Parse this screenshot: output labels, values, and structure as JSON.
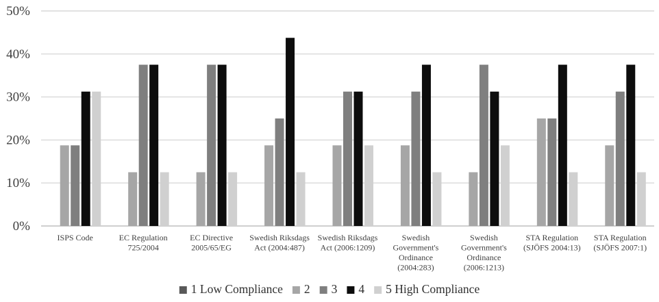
{
  "chart_data": {
    "type": "bar",
    "title": "",
    "xlabel": "",
    "ylabel": "",
    "ylim": [
      0,
      50
    ],
    "yticks": [
      "0%",
      "10%",
      "20%",
      "30%",
      "40%",
      "50%"
    ],
    "grid": true,
    "legend_position": "bottom",
    "categories": [
      [
        "ISPS Code"
      ],
      [
        "EC Regulation",
        "725/2004"
      ],
      [
        "EC Directive",
        "2005/65/EG"
      ],
      [
        "Swedish Riksdags",
        "Act (2004:487)"
      ],
      [
        "Swedish Riksdags",
        "Act (2006:1209)"
      ],
      [
        "Swedish",
        "Government's",
        "Ordinance",
        "(2004:283)"
      ],
      [
        "Swedish",
        "Government's",
        "Ordinance",
        "(2006:1213)"
      ],
      [
        "STA Regulation",
        "(SJÖFS 2004:13)"
      ],
      [
        "STA Regulation",
        "(SJÖFS 2007:1)"
      ]
    ],
    "series": [
      {
        "name": "1 Low Compliance",
        "color": "#595959",
        "values": [
          0,
          0,
          0,
          0,
          0,
          0,
          0,
          0,
          0
        ]
      },
      {
        "name": "2",
        "color": "#a6a6a6",
        "values": [
          18.75,
          12.5,
          12.5,
          18.75,
          18.75,
          18.75,
          12.5,
          25,
          18.75
        ]
      },
      {
        "name": "3",
        "color": "#7f7f7f",
        "values": [
          18.75,
          37.5,
          37.5,
          25,
          31.25,
          31.25,
          37.5,
          25,
          31.25
        ]
      },
      {
        "name": "4",
        "color": "#0d0d0d",
        "values": [
          31.25,
          37.5,
          37.5,
          43.75,
          31.25,
          37.5,
          31.25,
          37.5,
          37.5
        ]
      },
      {
        "name": "5 High Compliance",
        "color": "#d0d0d0",
        "values": [
          31.25,
          12.5,
          12.5,
          12.5,
          18.75,
          12.5,
          18.75,
          12.5,
          12.5
        ]
      }
    ]
  }
}
